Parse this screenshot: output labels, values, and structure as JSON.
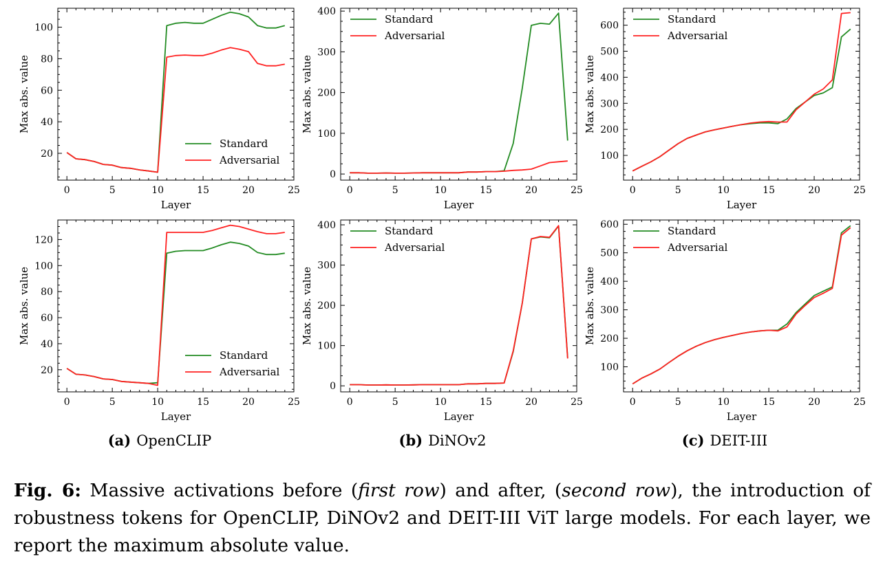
{
  "figure": {
    "sub_captions": [
      {
        "tag": "(a)",
        "name": "OpenCLIP"
      },
      {
        "tag": "(b)",
        "name": "DiNOv2"
      },
      {
        "tag": "(c)",
        "name": "DEIT-III"
      }
    ],
    "caption": {
      "label": "Fig. 6:",
      "text_1": " Massive activations before (",
      "emph_1": "first row",
      "text_2": ") and after, (",
      "emph_2": "second row",
      "text_3": "), the introduction of robustness tokens for OpenCLIP, DiNOv2 and DEIT-III ViT large models. For each layer, we report the maximum absolute value."
    }
  },
  "colors": {
    "standard": "#228b22",
    "adversarial": "#ff2020"
  },
  "chart_data": [
    {
      "type": "line",
      "id": "openclip-before",
      "xlabel": "Layer",
      "ylabel": "Max abs. value",
      "xlim": [
        -1,
        25
      ],
      "ylim": [
        3,
        112
      ],
      "xticks": [
        0,
        5,
        10,
        15,
        20,
        25
      ],
      "yticks": [
        20,
        40,
        60,
        80,
        100
      ],
      "legend_position": "lower-right",
      "x": [
        0,
        1,
        2,
        3,
        4,
        5,
        6,
        7,
        8,
        9,
        10,
        11,
        12,
        13,
        14,
        15,
        16,
        17,
        18,
        19,
        20,
        21,
        22,
        23,
        24
      ],
      "series": [
        {
          "name": "Standard",
          "color": "standard",
          "values": [
            20.5,
            16.5,
            16,
            14.8,
            13,
            12.5,
            11,
            10.5,
            9.5,
            8.8,
            8,
            101,
            102.5,
            103,
            102.5,
            102.5,
            105,
            107.5,
            109.5,
            108.5,
            106.5,
            101,
            99.5,
            99.5,
            101
          ]
        },
        {
          "name": "Adversarial",
          "color": "adversarial",
          "values": [
            20.5,
            16.5,
            16,
            14.8,
            13,
            12.5,
            11,
            10.5,
            9.5,
            8.8,
            8,
            81,
            82,
            82.3,
            82,
            82,
            83.5,
            85.5,
            87,
            86,
            84.5,
            77,
            75.5,
            75.5,
            76.5
          ]
        }
      ]
    },
    {
      "type": "line",
      "id": "dinov2-before",
      "xlabel": "Layer",
      "ylabel": "Max abs. value",
      "xlim": [
        -1,
        25
      ],
      "ylim": [
        -15,
        407
      ],
      "xticks": [
        0,
        5,
        10,
        15,
        20,
        25
      ],
      "yticks": [
        0,
        100,
        200,
        300,
        400
      ],
      "legend_position": "upper-left",
      "x": [
        0,
        1,
        2,
        3,
        4,
        5,
        6,
        7,
        8,
        9,
        10,
        11,
        12,
        13,
        14,
        15,
        16,
        17,
        18,
        19,
        20,
        21,
        22,
        23,
        24
      ],
      "series": [
        {
          "name": "Standard",
          "color": "standard",
          "values": [
            3,
            3,
            2,
            2,
            2.5,
            2,
            2,
            2.5,
            3,
            3,
            3,
            3,
            3,
            5,
            5,
            6,
            6,
            8,
            75,
            210,
            365,
            370,
            368,
            395,
            82
          ]
        },
        {
          "name": "Adversarial",
          "color": "adversarial",
          "values": [
            3,
            3,
            2,
            2,
            2.5,
            2,
            2,
            2.5,
            3,
            3,
            3,
            3,
            3,
            5,
            5,
            6,
            6,
            7,
            9,
            10,
            12,
            20,
            28,
            30,
            32
          ]
        }
      ]
    },
    {
      "type": "line",
      "id": "deit-before",
      "xlabel": "Layer",
      "ylabel": "Max abs. value",
      "xlim": [
        -1,
        25
      ],
      "ylim": [
        5,
        665
      ],
      "xticks": [
        0,
        5,
        10,
        15,
        20,
        25
      ],
      "yticks": [
        100,
        200,
        300,
        400,
        500,
        600
      ],
      "legend_position": "upper-left",
      "x": [
        0,
        1,
        2,
        3,
        4,
        5,
        6,
        7,
        8,
        9,
        10,
        11,
        12,
        13,
        14,
        15,
        16,
        17,
        18,
        19,
        20,
        21,
        22,
        23,
        24
      ],
      "series": [
        {
          "name": "Standard",
          "color": "standard",
          "values": [
            40,
            58,
            75,
            95,
            120,
            145,
            165,
            178,
            190,
            198,
            205,
            212,
            218,
            222,
            225,
            225,
            222,
            240,
            280,
            305,
            330,
            340,
            360,
            555,
            585
          ]
        },
        {
          "name": "Adversarial",
          "color": "adversarial",
          "values": [
            40,
            58,
            75,
            95,
            120,
            145,
            165,
            178,
            190,
            198,
            205,
            212,
            218,
            224,
            228,
            230,
            228,
            228,
            275,
            305,
            335,
            355,
            390,
            645,
            648
          ]
        }
      ]
    },
    {
      "type": "line",
      "id": "openclip-after",
      "xlabel": "Layer",
      "ylabel": "Max abs. value",
      "xlim": [
        -1,
        25
      ],
      "ylim": [
        3,
        135
      ],
      "xticks": [
        0,
        5,
        10,
        15,
        20,
        25
      ],
      "yticks": [
        20,
        40,
        60,
        80,
        100,
        120
      ],
      "legend_position": "lower-right",
      "x": [
        0,
        1,
        2,
        3,
        4,
        5,
        6,
        7,
        8,
        9,
        10,
        11,
        12,
        13,
        14,
        15,
        16,
        17,
        18,
        19,
        20,
        21,
        22,
        23,
        24
      ],
      "series": [
        {
          "name": "Standard",
          "color": "standard",
          "values": [
            21,
            16.5,
            16,
            14.8,
            13,
            12.5,
            11,
            10.5,
            10,
            9.5,
            10,
            109.5,
            111,
            111.5,
            111.5,
            111.5,
            113.5,
            116,
            118,
            117,
            115,
            110,
            108.5,
            108.5,
            109.5
          ]
        },
        {
          "name": "Adversarial",
          "color": "adversarial",
          "values": [
            21,
            16.5,
            16,
            14.8,
            13,
            12.5,
            11,
            10.5,
            10,
            9.5,
            8,
            125.5,
            125.5,
            125.5,
            125.5,
            125.5,
            127,
            129,
            131,
            130,
            128,
            126,
            124.5,
            124.5,
            125.5
          ]
        }
      ]
    },
    {
      "type": "line",
      "id": "dinov2-after",
      "xlabel": "Layer",
      "ylabel": "Max abs. value",
      "xlim": [
        -1,
        25
      ],
      "ylim": [
        -15,
        412
      ],
      "xticks": [
        0,
        5,
        10,
        15,
        20,
        25
      ],
      "yticks": [
        0,
        100,
        200,
        300,
        400
      ],
      "legend_position": "upper-left",
      "x": [
        0,
        1,
        2,
        3,
        4,
        5,
        6,
        7,
        8,
        9,
        10,
        11,
        12,
        13,
        14,
        15,
        16,
        17,
        18,
        19,
        20,
        21,
        22,
        23,
        24
      ],
      "series": [
        {
          "name": "Standard",
          "color": "standard",
          "values": [
            3,
            3,
            2,
            2,
            2.5,
            2,
            2,
            2.5,
            3,
            3,
            3,
            3,
            3,
            5,
            5,
            6,
            6,
            7,
            85,
            205,
            365,
            370,
            368,
            397,
            70
          ]
        },
        {
          "name": "Adversarial",
          "color": "adversarial",
          "values": [
            3,
            3,
            2,
            2,
            2.5,
            2,
            2,
            2.5,
            3,
            3,
            3,
            3,
            3,
            5,
            5,
            6,
            6,
            7,
            87,
            205,
            365,
            371,
            369,
            398,
            68
          ]
        }
      ]
    },
    {
      "type": "line",
      "id": "deit-after",
      "xlabel": "Layer",
      "ylabel": "Max abs. value",
      "xlim": [
        -1,
        25
      ],
      "ylim": [
        12,
        615
      ],
      "xticks": [
        0,
        5,
        10,
        15,
        20,
        25
      ],
      "yticks": [
        100,
        200,
        300,
        400,
        500,
        600
      ],
      "legend_position": "upper-left",
      "x": [
        0,
        1,
        2,
        3,
        4,
        5,
        6,
        7,
        8,
        9,
        10,
        11,
        12,
        13,
        14,
        15,
        16,
        17,
        18,
        19,
        20,
        21,
        22,
        23,
        24
      ],
      "series": [
        {
          "name": "Standard",
          "color": "standard",
          "values": [
            40,
            60,
            75,
            92,
            115,
            137,
            156,
            172,
            185,
            195,
            203,
            210,
            217,
            222,
            226,
            228,
            228,
            250,
            290,
            320,
            350,
            365,
            380,
            570,
            595
          ]
        },
        {
          "name": "Adversarial",
          "color": "adversarial",
          "values": [
            40,
            60,
            75,
            92,
            115,
            137,
            156,
            172,
            185,
            195,
            203,
            210,
            217,
            222,
            226,
            228,
            226,
            240,
            285,
            315,
            343,
            358,
            375,
            562,
            588
          ]
        }
      ]
    }
  ]
}
